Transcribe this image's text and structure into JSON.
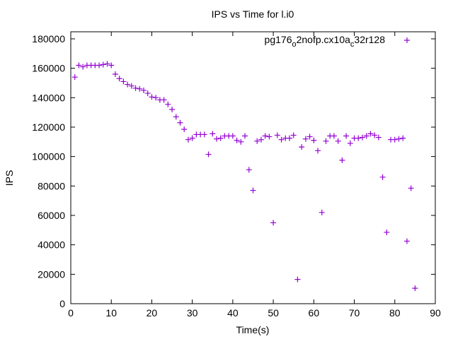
{
  "chart_data": {
    "type": "scatter",
    "title": "IPS vs Time for l.i0",
    "xlabel": "Time(s)",
    "ylabel": "IPS",
    "xlim": [
      0,
      90
    ],
    "ylim": [
      0,
      180000
    ],
    "xticks": [
      0,
      10,
      20,
      30,
      40,
      50,
      60,
      70,
      80,
      90
    ],
    "yticks": [
      0,
      20000,
      40000,
      60000,
      80000,
      100000,
      120000,
      140000,
      160000,
      180000
    ],
    "grid": false,
    "legend_position": "top-right",
    "series": [
      {
        "name_parts": {
          "a": "pg176",
          "b": "o",
          "c": "2nofp.cx10a",
          "d": "c",
          "e": "32r128"
        },
        "color": "#9400d3",
        "marker": "plus",
        "x": [
          1,
          2,
          3,
          4,
          5,
          6,
          7,
          8,
          9,
          10,
          11,
          12,
          13,
          14,
          15,
          16,
          17,
          18,
          19,
          20,
          21,
          22,
          23,
          24,
          25,
          26,
          27,
          28,
          29,
          30,
          31,
          32,
          33,
          34,
          35,
          36,
          37,
          38,
          39,
          40,
          41,
          42,
          43,
          44,
          45,
          46,
          47,
          48,
          49,
          50,
          51,
          52,
          53,
          54,
          55,
          56,
          57,
          58,
          59,
          60,
          61,
          62,
          63,
          64,
          65,
          66,
          67,
          68,
          69,
          70,
          71,
          72,
          73,
          74,
          75,
          76,
          77,
          78,
          79,
          80,
          81,
          82,
          83,
          84,
          85
        ],
        "y": [
          154000,
          162000,
          161000,
          162000,
          162000,
          162000,
          162000,
          162500,
          163000,
          162000,
          156000,
          153000,
          151000,
          149000,
          148000,
          146500,
          146000,
          145000,
          143000,
          140500,
          140000,
          138500,
          138500,
          135500,
          132000,
          127000,
          123000,
          118500,
          111500,
          112500,
          115000,
          115000,
          115000,
          101500,
          115500,
          112000,
          112500,
          114000,
          114000,
          114000,
          111000,
          110000,
          114000,
          91000,
          77000,
          110500,
          111500,
          114000,
          113500,
          55000,
          114500,
          111500,
          112500,
          112500,
          114500,
          16500,
          106500,
          112000,
          113500,
          111000,
          104000,
          62000,
          110500,
          114000,
          114000,
          110500,
          97500,
          114000,
          109000,
          112500,
          112500,
          113000,
          114000,
          115500,
          114500,
          113000,
          86000,
          48500,
          111500,
          111500,
          112000,
          112500,
          42500,
          78500,
          10500
        ]
      }
    ]
  }
}
